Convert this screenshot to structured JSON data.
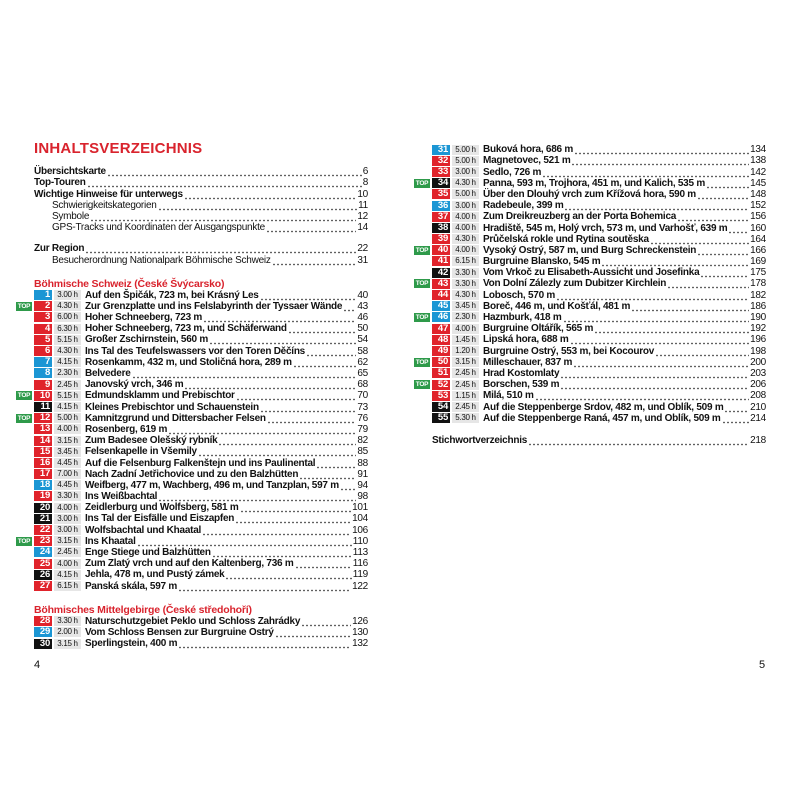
{
  "colors": {
    "red": "#e0232b",
    "blue": "#1b96d4",
    "black": "#111111",
    "top": "#2e9a4a"
  },
  "left": {
    "title": "INHALTSVERZEICHNIS",
    "entries": [
      {
        "text": "Übersichtskarte",
        "page": "6",
        "level": 0
      },
      {
        "text": "Top-Touren",
        "page": "8",
        "level": 0
      },
      {
        "text": "Wichtige Hinweise für unterwegs",
        "page": "10",
        "level": 0
      },
      {
        "text": "Schwierigkeitskategorien",
        "page": "11",
        "level": 1
      },
      {
        "text": "Symbole",
        "page": "12",
        "level": 1
      },
      {
        "text": "GPS-Tracks und Koordinaten der Ausgangspunkte",
        "page": "14",
        "level": 1
      }
    ],
    "region": [
      {
        "text": "Zur Region",
        "page": "22",
        "level": 0
      },
      {
        "text": "Besucherordnung Nationalpark Böhmische Schweiz",
        "page": "31",
        "level": 1
      }
    ],
    "section1": "Böhmische Schweiz (České Švýcarsko)",
    "tours1": [
      {
        "n": "1",
        "c": "blue",
        "t": "3.00 h",
        "title": "Auf den Špičák, 723 m, bei Krásný Les",
        "page": "40",
        "top": false
      },
      {
        "n": "2",
        "c": "red",
        "t": "4.30 h",
        "title": "Zur Grenzplatte und ins Felslabyrinth der Tyssaer Wände",
        "page": "43",
        "top": true
      },
      {
        "n": "3",
        "c": "red",
        "t": "6.00 h",
        "title": "Hoher Schneeberg, 723 m",
        "page": "46",
        "top": false
      },
      {
        "n": "4",
        "c": "red",
        "t": "6.30 h",
        "title": "Hoher Schneeberg, 723 m, und Schäferwand",
        "page": "50",
        "top": false
      },
      {
        "n": "5",
        "c": "red",
        "t": "5.15 h",
        "title": "Großer Zschirnstein, 560 m",
        "page": "54",
        "top": false
      },
      {
        "n": "6",
        "c": "red",
        "t": "4.30 h",
        "title": "Ins Tal des Teufelswassers vor den Toren Děčíns",
        "page": "58",
        "top": false
      },
      {
        "n": "7",
        "c": "blue",
        "t": "4.15 h",
        "title": "Rosenkamm, 432 m, und Stoličná hora, 289 m",
        "page": "62",
        "top": false
      },
      {
        "n": "8",
        "c": "blue",
        "t": "2.30 h",
        "title": "Belvedere",
        "page": "65",
        "top": false
      },
      {
        "n": "9",
        "c": "red",
        "t": "2.45 h",
        "title": "Janovský vrch, 346 m",
        "page": "68",
        "top": false
      },
      {
        "n": "10",
        "c": "red",
        "t": "5.15 h",
        "title": "Edmundsklamm und Prebischtor",
        "page": "70",
        "top": true
      },
      {
        "n": "11",
        "c": "black",
        "t": "4.15 h",
        "title": "Kleines Prebischtor und Schauenstein",
        "page": "73",
        "top": false
      },
      {
        "n": "12",
        "c": "red",
        "t": "5.00 h",
        "title": "Kamnitzgrund und Dittersbacher Felsen",
        "page": "76",
        "top": true
      },
      {
        "n": "13",
        "c": "red",
        "t": "4.00 h",
        "title": "Rosenberg, 619 m",
        "page": "79",
        "top": false
      },
      {
        "n": "14",
        "c": "red",
        "t": "3.15 h",
        "title": "Zum Badesee Olešský rybník",
        "page": "82",
        "top": false
      },
      {
        "n": "15",
        "c": "red",
        "t": "3.45 h",
        "title": "Felsenkapelle in Všemily",
        "page": "85",
        "top": false
      },
      {
        "n": "16",
        "c": "red",
        "t": "4.45 h",
        "title": "Auf die Felsenburg Falkenštejn und ins Paulinental",
        "page": "88",
        "top": false
      },
      {
        "n": "17",
        "c": "red",
        "t": "7.00 h",
        "title": "Nach Zadní Jetřichovice und zu den Balzhütten",
        "page": "91",
        "top": false
      },
      {
        "n": "18",
        "c": "blue",
        "t": "4.45 h",
        "title": "Weifberg, 477 m, Wachberg, 496 m, und Tanzplan, 597 m",
        "page": "94",
        "top": false
      },
      {
        "n": "19",
        "c": "red",
        "t": "3.30 h",
        "title": "Ins Weißbachtal",
        "page": "98",
        "top": false
      },
      {
        "n": "20",
        "c": "black",
        "t": "4.00 h",
        "title": "Zeidlerburg und Wolfsberg, 581 m",
        "page": "101",
        "top": false
      },
      {
        "n": "21",
        "c": "black",
        "t": "3.00 h",
        "title": "Ins Tal der Eisfälle und Eiszapfen",
        "page": "104",
        "top": false
      },
      {
        "n": "22",
        "c": "red",
        "t": "3.00 h",
        "title": "Wolfsbachtal und Khaatal",
        "page": "106",
        "top": false
      },
      {
        "n": "23",
        "c": "red",
        "t": "3.15 h",
        "title": "Ins Khaatal",
        "page": "110",
        "top": true
      },
      {
        "n": "24",
        "c": "blue",
        "t": "2.45 h",
        "title": "Enge Stiege und Balzhütten",
        "page": "113",
        "top": false
      },
      {
        "n": "25",
        "c": "red",
        "t": "4.00 h",
        "title": "Zum Zlatý vrch und auf den Kaltenberg, 736 m",
        "page": "116",
        "top": false
      },
      {
        "n": "26",
        "c": "black",
        "t": "4.15 h",
        "title": "Jehla, 478 m, und Pustý zámek",
        "page": "119",
        "top": false
      },
      {
        "n": "27",
        "c": "red",
        "t": "6.15 h",
        "title": "Panská skála, 597 m",
        "page": "122",
        "top": false
      }
    ],
    "section2": "Böhmisches Mittelgebirge (České středohoří)",
    "tours2": [
      {
        "n": "28",
        "c": "red",
        "t": "3.30 h",
        "title": "Naturschutzgebiet Peklo und Schloss Zahrádky",
        "page": "126",
        "top": false
      },
      {
        "n": "29",
        "c": "blue",
        "t": "2.00 h",
        "title": "Vom Schloss Bensen zur Burgruine Ostrý",
        "page": "130",
        "top": false
      },
      {
        "n": "30",
        "c": "black",
        "t": "3.15 h",
        "title": "Sperlingstein, 400 m",
        "page": "132",
        "top": false
      }
    ],
    "page_number": "4"
  },
  "right": {
    "tours": [
      {
        "n": "31",
        "c": "blue",
        "t": "5.00 h",
        "title": "Buková hora, 686 m",
        "page": "134",
        "top": false
      },
      {
        "n": "32",
        "c": "red",
        "t": "5.00 h",
        "title": "Magnetovec, 521 m",
        "page": "138",
        "top": false
      },
      {
        "n": "33",
        "c": "red",
        "t": "3.00 h",
        "title": "Sedlo, 726 m",
        "page": "142",
        "top": false
      },
      {
        "n": "34",
        "c": "black",
        "t": "4.30 h",
        "title": "Panna, 593 m, Trojhora, 451 m, und Kalich, 535 m",
        "page": "145",
        "top": true
      },
      {
        "n": "35",
        "c": "red",
        "t": "5.00 h",
        "title": "Über den Dlouhý vrch zum Křížová hora, 590 m",
        "page": "148",
        "top": false
      },
      {
        "n": "36",
        "c": "blue",
        "t": "3.00 h",
        "title": "Radebeule, 399 m",
        "page": "152",
        "top": false
      },
      {
        "n": "37",
        "c": "red",
        "t": "4.00 h",
        "title": "Zum Dreikreuzberg an der Porta Bohemica",
        "page": "156",
        "top": false
      },
      {
        "n": "38",
        "c": "black",
        "t": "4.00 h",
        "title": "Hradiště, 545 m, Holý vrch, 573 m, und Varhošť, 639 m",
        "page": "160",
        "top": false
      },
      {
        "n": "39",
        "c": "red",
        "t": "4.30 h",
        "title": "Průčelská rokle und Rytina soutěska",
        "page": "164",
        "top": false
      },
      {
        "n": "40",
        "c": "red",
        "t": "4.00 h",
        "title": "Vysoký Ostrý, 587 m, und Burg Schreckenstein",
        "page": "166",
        "top": true
      },
      {
        "n": "41",
        "c": "red",
        "t": "6.15 h",
        "title": "Burgruine Blansko, 545 m",
        "page": "169",
        "top": false
      },
      {
        "n": "42",
        "c": "black",
        "t": "3.30 h",
        "title": "Vom Vrkoč zu Elisabeth-Aussicht und Josefinka",
        "page": "175",
        "top": false
      },
      {
        "n": "43",
        "c": "red",
        "t": "3.30 h",
        "title": "Von Dolní Zálezly zum Dubitzer Kirchlein",
        "page": "178",
        "top": true
      },
      {
        "n": "44",
        "c": "red",
        "t": "4.30 h",
        "title": "Lobosch, 570 m",
        "page": "182",
        "top": false
      },
      {
        "n": "45",
        "c": "blue",
        "t": "3.45 h",
        "title": "Boreč, 446 m, und Košťál, 481 m",
        "page": "186",
        "top": false
      },
      {
        "n": "46",
        "c": "blue",
        "t": "2.30 h",
        "title": "Hazmburk, 418 m",
        "page": "190",
        "top": true
      },
      {
        "n": "47",
        "c": "red",
        "t": "4.00 h",
        "title": "Burgruine Oltářík, 565 m",
        "page": "192",
        "top": false
      },
      {
        "n": "48",
        "c": "red",
        "t": "1.45 h",
        "title": "Lipská hora, 688 m",
        "page": "196",
        "top": false
      },
      {
        "n": "49",
        "c": "red",
        "t": "1.20 h",
        "title": "Burgruine Ostrý, 553 m, bei Kocourov",
        "page": "198",
        "top": false
      },
      {
        "n": "50",
        "c": "red",
        "t": "3.15 h",
        "title": "Milleschauer, 837 m",
        "page": "200",
        "top": true
      },
      {
        "n": "51",
        "c": "red",
        "t": "2.45 h",
        "title": "Hrad Kostomlaty",
        "page": "203",
        "top": false
      },
      {
        "n": "52",
        "c": "red",
        "t": "2.45 h",
        "title": "Borschen, 539 m",
        "page": "206",
        "top": true
      },
      {
        "n": "53",
        "c": "red",
        "t": "1.15 h",
        "title": "Milá, 510 m",
        "page": "208",
        "top": false
      },
      {
        "n": "54",
        "c": "black",
        "t": "2.45 h",
        "title": "Auf die Steppenberge Srdov, 482 m, und Oblík, 509 m",
        "page": "210",
        "top": false
      },
      {
        "n": "55",
        "c": "black",
        "t": "5.30 h",
        "title": "Auf die Steppenberge Raná, 457 m, und Oblík, 509 m",
        "page": "214",
        "top": false
      }
    ],
    "index": {
      "text": "Stichwortverzeichnis",
      "page": "218"
    },
    "page_number": "5"
  },
  "top_label": "TOP"
}
